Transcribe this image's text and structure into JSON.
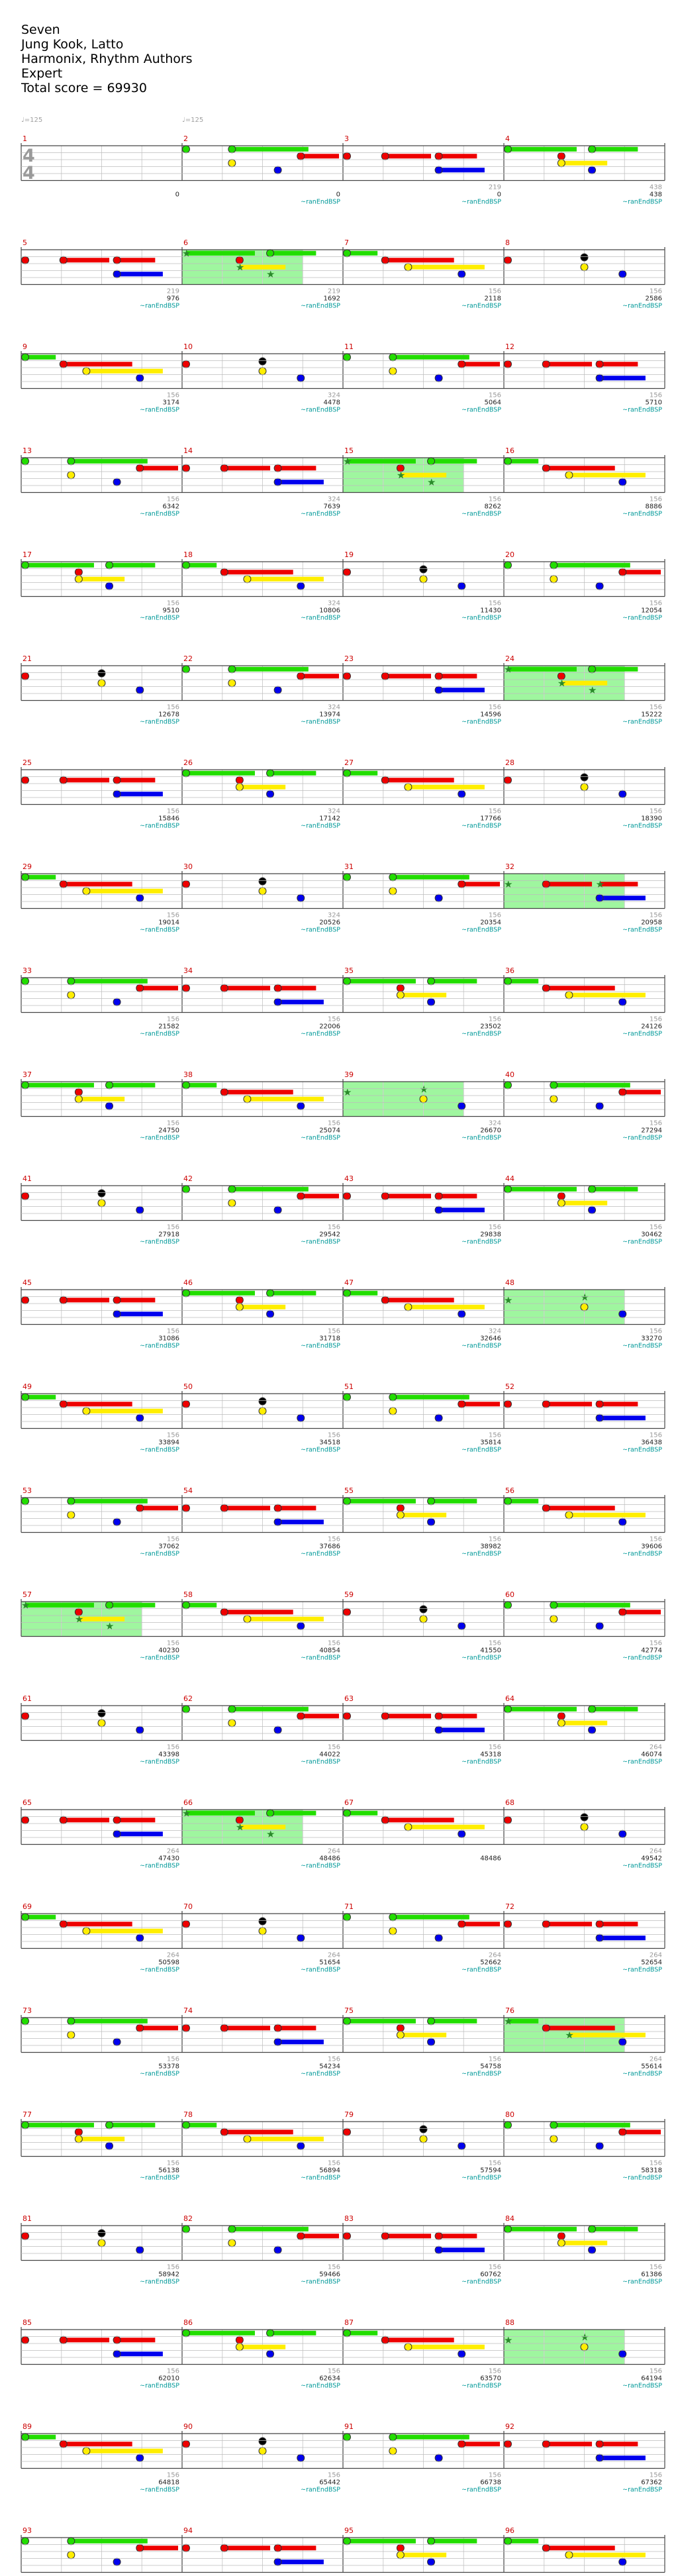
{
  "header": {
    "title": "Seven",
    "artist": "Jung Kook, Latto",
    "charter": "Harmonix, Rhythm Authors",
    "difficulty": "Expert",
    "total_score": "Total score = 69930"
  },
  "tempo_markers": [
    "♩=125",
    "♩=125"
  ],
  "time_signature": {
    "numerator": "4",
    "denominator": "4"
  },
  "marker_label": "~ranEndBSP",
  "colors": {
    "green": "#22dd00",
    "red": "#ee0000",
    "yellow": "#ffee00",
    "blue": "#0000ee",
    "orange": "#ff9900",
    "star_power": "#8ef58e",
    "measure_number": "#cc0000",
    "marker": "#009999"
  },
  "lanes": [
    "green",
    "red",
    "yellow",
    "blue",
    "orange"
  ],
  "measure_numbers": [
    "1",
    "2",
    "3",
    "4",
    "5",
    "6",
    "7",
    "8",
    "9",
    "10",
    "11",
    "12",
    "13",
    "14",
    "15",
    "16",
    "17",
    "18",
    "19",
    "20",
    "21",
    "22",
    "23",
    "24",
    "25",
    "26",
    "27",
    "28",
    "29",
    "30",
    "31",
    "32",
    "33",
    "34",
    "35",
    "36",
    "37",
    "38",
    "39",
    "40",
    "41",
    "42",
    "43",
    "44",
    "45",
    "46",
    "47",
    "48",
    "49",
    "50",
    "51",
    "52",
    "53",
    "54",
    "55",
    "56",
    "57",
    "58",
    "59",
    "60",
    "61",
    "62",
    "63",
    "64",
    "65",
    "66",
    "67",
    "68",
    "69",
    "70",
    "71",
    "72",
    "73",
    "74",
    "75",
    "76",
    "77",
    "78",
    "79",
    "80",
    "81",
    "82",
    "83",
    "84",
    "85",
    "86",
    "87",
    "88",
    "89",
    "90",
    "91",
    "92",
    "93",
    "94",
    "95",
    "96"
  ],
  "scores": [
    "0",
    "0",
    "0",
    "438",
    "976",
    "1692",
    "2118",
    "2586",
    "3174",
    "4478",
    "5064",
    "5710",
    "6342",
    "7639",
    "8262",
    "8886",
    "9510",
    "10806",
    "11430",
    "12054",
    "12678",
    "13974",
    "14596",
    "15222",
    "15846",
    "17142",
    "17766",
    "18390",
    "19014",
    "20526",
    "20354",
    "20958",
    "21582",
    "22006",
    "23502",
    "24126",
    "24750",
    "25074",
    "26670",
    "27294",
    "27918",
    "29542",
    "29838",
    "30462",
    "31086",
    "31718",
    "32646",
    "33270",
    "33894",
    "34518",
    "35814",
    "36438",
    "37062",
    "37686",
    "38982",
    "39606",
    "40230",
    "40854",
    "41550",
    "42774",
    "43398",
    "44022",
    "45318",
    "46074",
    "47430",
    "48486",
    "48486",
    "49542",
    "50598",
    "51654",
    "52662",
    "52654",
    "53378",
    "54234",
    "54758",
    "55614",
    "56138",
    "56894",
    "57594",
    "58318",
    "58942",
    "59466",
    "60762",
    "61386",
    "62010",
    "62634",
    "63570",
    "64194",
    "64818",
    "65442",
    "66738",
    "67362",
    "67986",
    "68610",
    "69022",
    "69930"
  ],
  "subscores": [
    "",
    "",
    "219",
    "438",
    "219",
    "219",
    "156",
    "156",
    "156",
    "324",
    "156",
    "156",
    "156",
    "324",
    "156",
    "156",
    "156",
    "324",
    "156",
    "156",
    "156",
    "324",
    "156",
    "156",
    "156",
    "324",
    "156",
    "156",
    "156",
    "324",
    "156",
    "156",
    "156",
    "156",
    "156",
    "156",
    "156",
    "156",
    "324",
    "156",
    "156",
    "156",
    "156",
    "156",
    "156",
    "156",
    "324",
    "156",
    "156",
    "156",
    "156",
    "156",
    "156",
    "156",
    "156",
    "156",
    "156",
    "156",
    "156",
    "156",
    "156",
    "156",
    "156",
    "264",
    "264",
    "264",
    "",
    "264",
    "264",
    "264",
    "264",
    "264",
    "156",
    "156",
    "156",
    "264",
    "156",
    "156",
    "156",
    "156",
    "156",
    "156",
    "156",
    "156",
    "156",
    "156",
    "156",
    "156",
    "156",
    "156",
    "156",
    "156",
    "156",
    "156",
    "156",
    "156"
  ],
  "markers_per_measure": [
    false,
    true,
    true,
    true,
    true,
    true,
    true,
    true,
    true,
    true,
    true,
    true,
    true,
    true,
    true,
    true,
    true,
    true,
    true,
    true,
    true,
    true,
    true,
    true,
    true,
    true,
    true,
    true,
    true,
    true,
    true,
    true,
    true,
    true,
    true,
    true,
    true,
    true,
    true,
    true,
    true,
    true,
    true,
    true,
    true,
    true,
    true,
    true,
    true,
    true,
    true,
    true,
    true,
    true,
    true,
    true,
    true,
    true,
    true,
    true,
    true,
    true,
    true,
    true,
    true,
    true,
    false,
    true,
    true,
    true,
    true,
    true,
    true,
    true,
    true,
    true,
    true,
    true,
    true,
    true,
    true,
    true,
    true,
    true,
    true,
    true,
    true,
    true,
    true,
    true,
    true,
    true,
    true,
    true,
    true,
    true
  ],
  "star_power_measures": [
    "6",
    "15",
    "24",
    "32",
    "39",
    "48",
    "57",
    "66",
    "76",
    "88"
  ],
  "note_patterns": {
    "A": [
      [
        0.0,
        1,
        0
      ],
      [
        0.5,
        2,
        0
      ],
      [
        0.5,
        0.6,
        0.75,
        0
      ],
      [
        0.75,
        3,
        0
      ]
    ],
    "B": [
      [
        0.0,
        0,
        0.45
      ],
      [
        0.35,
        1,
        0
      ],
      [
        0.35,
        2,
        0.3
      ],
      [
        0.55,
        0,
        0.3
      ],
      [
        0.55,
        3,
        0
      ]
    ],
    "C": [
      [
        0.0,
        0,
        0
      ],
      [
        0.3,
        2,
        0
      ],
      [
        0.3,
        0,
        0.5
      ],
      [
        0.6,
        3,
        0
      ],
      [
        0.75,
        1,
        0.25
      ]
    ],
    "D": [
      [
        0.0,
        0,
        0.2
      ],
      [
        0.25,
        1,
        0.45
      ],
      [
        0.4,
        2,
        0.5
      ],
      [
        0.75,
        3,
        0
      ]
    ],
    "E": [
      [
        0.0,
        1,
        0
      ],
      [
        0.25,
        1,
        0.3
      ],
      [
        0.6,
        1,
        0.25
      ],
      [
        0.6,
        3,
        0.3
      ]
    ]
  }
}
